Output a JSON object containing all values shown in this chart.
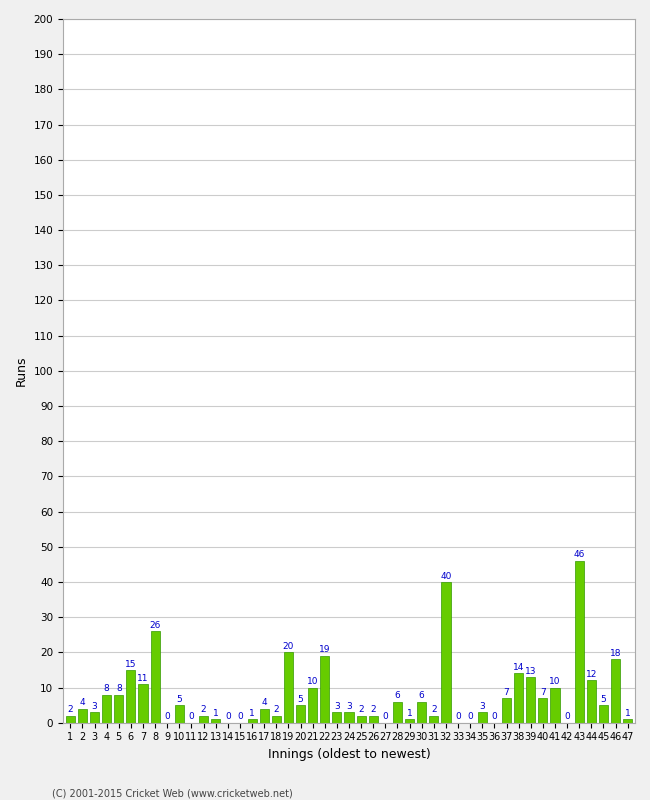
{
  "title": "",
  "xlabel": "Innings (oldest to newest)",
  "ylabel": "Runs",
  "ylim": [
    0,
    200
  ],
  "yticks": [
    0,
    10,
    20,
    30,
    40,
    50,
    60,
    70,
    80,
    90,
    100,
    110,
    120,
    130,
    140,
    150,
    160,
    170,
    180,
    190,
    200
  ],
  "innings": [
    1,
    2,
    3,
    4,
    5,
    6,
    7,
    8,
    9,
    10,
    11,
    12,
    13,
    14,
    15,
    16,
    17,
    18,
    19,
    20,
    21,
    22,
    23,
    24,
    25,
    26,
    27,
    28,
    29,
    30,
    31,
    32,
    33,
    34,
    35,
    36,
    37,
    38,
    39,
    40,
    41,
    42,
    43,
    44,
    45,
    46,
    47
  ],
  "values": [
    2,
    4,
    3,
    8,
    8,
    15,
    11,
    26,
    0,
    5,
    0,
    2,
    1,
    0,
    0,
    1,
    4,
    2,
    20,
    5,
    10,
    19,
    3,
    3,
    2,
    2,
    0,
    6,
    1,
    6,
    2,
    40,
    0,
    0,
    3,
    0,
    7,
    14,
    13,
    7,
    10,
    0,
    46,
    12,
    5,
    18,
    1
  ],
  "bar_color": "#66cc00",
  "bar_edge_color": "#339900",
  "label_color": "#0000cc",
  "background_color": "#f0f0f0",
  "plot_bg_color": "#ffffff",
  "grid_color": "#cccccc",
  "axis_fontsize": 9,
  "label_fontsize": 6.5,
  "tick_fontsize": 7.5,
  "footer": "(C) 2001-2015 Cricket Web (www.cricketweb.net)"
}
